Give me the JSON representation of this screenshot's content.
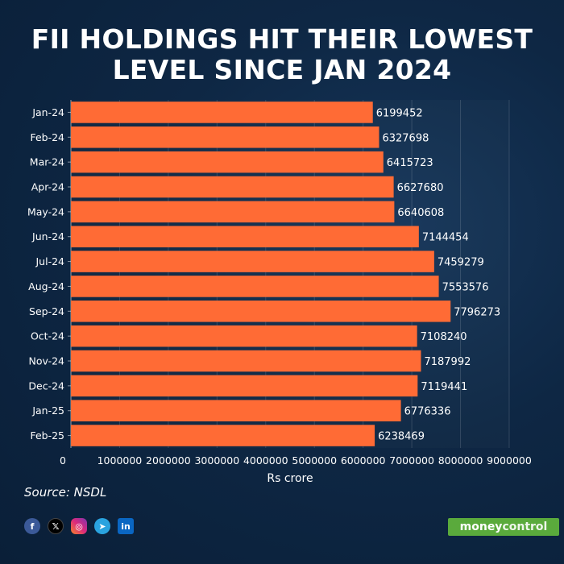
{
  "title_lines": [
    "FII HOLDINGS HIT THEIR LOWEST",
    "LEVEL SINCE JAN 2024"
  ],
  "source": "Source: NSDL",
  "social_icons": [
    "facebook-icon",
    "x-icon",
    "instagram-icon",
    "telegram-icon",
    "linkedin-icon"
  ],
  "brand": {
    "part1": "money",
    "part2": "control",
    "color": "#5aaa3c"
  },
  "colors": {
    "bar": "#ff6b35",
    "background": "#0e2744",
    "text": "#ffffff"
  },
  "chart_data": {
    "type": "bar",
    "orientation": "horizontal",
    "categories": [
      "Jan-24",
      "Feb-24",
      "Mar-24",
      "Apr-24",
      "May-24",
      "Jun-24",
      "Jul-24",
      "Aug-24",
      "Sep-24",
      "Oct-24",
      "Nov-24",
      "Dec-24",
      "Jan-25",
      "Feb-25"
    ],
    "values": [
      6199452,
      6327698,
      6415723,
      6627680,
      6640608,
      7144454,
      7459279,
      7553576,
      7796273,
      7108240,
      7187992,
      7119441,
      6776336,
      6238469
    ],
    "xlabel": "Rs crore",
    "ylabel": "",
    "xlim": [
      0,
      9000000
    ],
    "xticks": [
      0,
      1000000,
      2000000,
      3000000,
      4000000,
      5000000,
      6000000,
      7000000,
      8000000,
      9000000
    ],
    "grid": true,
    "data_labels": true
  }
}
